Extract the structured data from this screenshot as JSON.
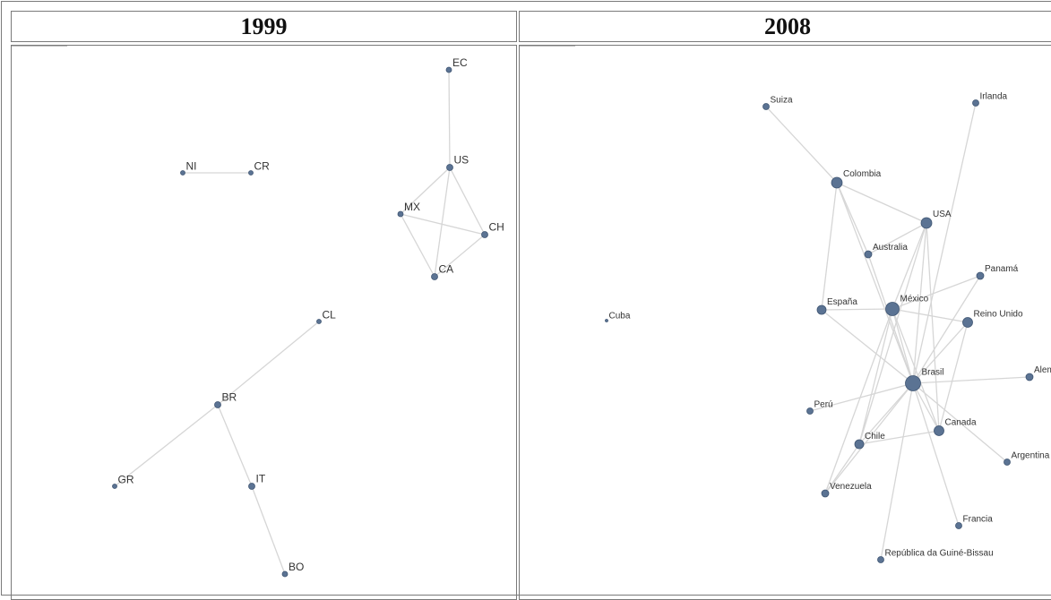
{
  "panels": [
    {
      "title": "1999",
      "nodes": [
        {
          "id": "EC",
          "label": "EC",
          "r": 3
        },
        {
          "id": "US",
          "label": "US",
          "r": 3.5
        },
        {
          "id": "NI",
          "label": "NI",
          "r": 2.5
        },
        {
          "id": "CR",
          "label": "CR",
          "r": 2.5
        },
        {
          "id": "MX",
          "label": "MX",
          "r": 3
        },
        {
          "id": "CH",
          "label": "CH",
          "r": 3.5
        },
        {
          "id": "CA",
          "label": "CA",
          "r": 3.5
        },
        {
          "id": "CL",
          "label": "CL",
          "r": 2.5
        },
        {
          "id": "BR",
          "label": "BR",
          "r": 3.5
        },
        {
          "id": "GR",
          "label": "GR",
          "r": 2.5
        },
        {
          "id": "IT",
          "label": "IT",
          "r": 3.5
        },
        {
          "id": "BO",
          "label": "BO",
          "r": 3
        }
      ],
      "edges": [
        [
          "EC",
          "US"
        ],
        [
          "US",
          "MX"
        ],
        [
          "US",
          "CH"
        ],
        [
          "US",
          "CA"
        ],
        [
          "MX",
          "CH"
        ],
        [
          "MX",
          "CA"
        ],
        [
          "CH",
          "CA"
        ],
        [
          "NI",
          "CR"
        ],
        [
          "CL",
          "BR"
        ],
        [
          "BR",
          "GR"
        ],
        [
          "BR",
          "IT"
        ],
        [
          "IT",
          "BO"
        ]
      ]
    },
    {
      "title": "2008",
      "nodes": [
        {
          "id": "Suiza",
          "label": "Suiza",
          "r": 3.5
        },
        {
          "id": "Irlanda",
          "label": "Irlanda",
          "r": 3.5
        },
        {
          "id": "Colombia",
          "label": "Colombia",
          "r": 6
        },
        {
          "id": "USA",
          "label": "USA",
          "r": 6
        },
        {
          "id": "Australia",
          "label": "Australia",
          "r": 4
        },
        {
          "id": "Panama",
          "label": "Panamá",
          "r": 4
        },
        {
          "id": "Espana",
          "label": "España",
          "r": 5
        },
        {
          "id": "Mexico",
          "label": "México",
          "r": 7.5
        },
        {
          "id": "ReinoUnido",
          "label": "Reino Unido",
          "r": 5.5
        },
        {
          "id": "Cuba",
          "label": "Cuba",
          "r": 1.5
        },
        {
          "id": "Brasil",
          "label": "Brasil",
          "r": 8.5
        },
        {
          "id": "Alemania",
          "label": "Alem",
          "r": 4
        },
        {
          "id": "Peru",
          "label": "Perú",
          "r": 3.5
        },
        {
          "id": "Canada",
          "label": "Canada",
          "r": 5.5
        },
        {
          "id": "Chile",
          "label": "Chile",
          "r": 5
        },
        {
          "id": "Argentina",
          "label": "Argentina",
          "r": 3.5
        },
        {
          "id": "Venezuela",
          "label": "Venezuela",
          "r": 4
        },
        {
          "id": "Francia",
          "label": "Francia",
          "r": 3.5
        },
        {
          "id": "Guinea",
          "label": "República da Guiné-Bissau",
          "r": 3.5
        }
      ],
      "edges": [
        [
          "Suiza",
          "Colombia"
        ],
        [
          "Colombia",
          "USA"
        ],
        [
          "Colombia",
          "Australia"
        ],
        [
          "Colombia",
          "Espana"
        ],
        [
          "Colombia",
          "Brasil"
        ],
        [
          "Irlanda",
          "Brasil"
        ],
        [
          "USA",
          "Brasil"
        ],
        [
          "USA",
          "Mexico"
        ],
        [
          "USA",
          "Australia"
        ],
        [
          "USA",
          "Chile"
        ],
        [
          "USA",
          "Canada"
        ],
        [
          "Australia",
          "Brasil"
        ],
        [
          "Panama",
          "Mexico"
        ],
        [
          "Panama",
          "Brasil"
        ],
        [
          "Espana",
          "Mexico"
        ],
        [
          "Espana",
          "Brasil"
        ],
        [
          "Mexico",
          "ReinoUnido"
        ],
        [
          "Mexico",
          "Brasil"
        ],
        [
          "Mexico",
          "Chile"
        ],
        [
          "Mexico",
          "Canada"
        ],
        [
          "Mexico",
          "Venezuela"
        ],
        [
          "ReinoUnido",
          "Brasil"
        ],
        [
          "ReinoUnido",
          "Canada"
        ],
        [
          "Brasil",
          "Alemania"
        ],
        [
          "Brasil",
          "Peru"
        ],
        [
          "Brasil",
          "Canada"
        ],
        [
          "Brasil",
          "Chile"
        ],
        [
          "Brasil",
          "Argentina"
        ],
        [
          "Brasil",
          "Venezuela"
        ],
        [
          "Brasil",
          "Francia"
        ],
        [
          "Brasil",
          "Guinea"
        ],
        [
          "Chile",
          "Canada"
        ],
        [
          "Chile",
          "Venezuela"
        ]
      ]
    }
  ],
  "colors": {
    "node": "#5b7393",
    "node_stroke": "#3f5572",
    "edge": "#d6d6d6",
    "label": "#333333"
  }
}
